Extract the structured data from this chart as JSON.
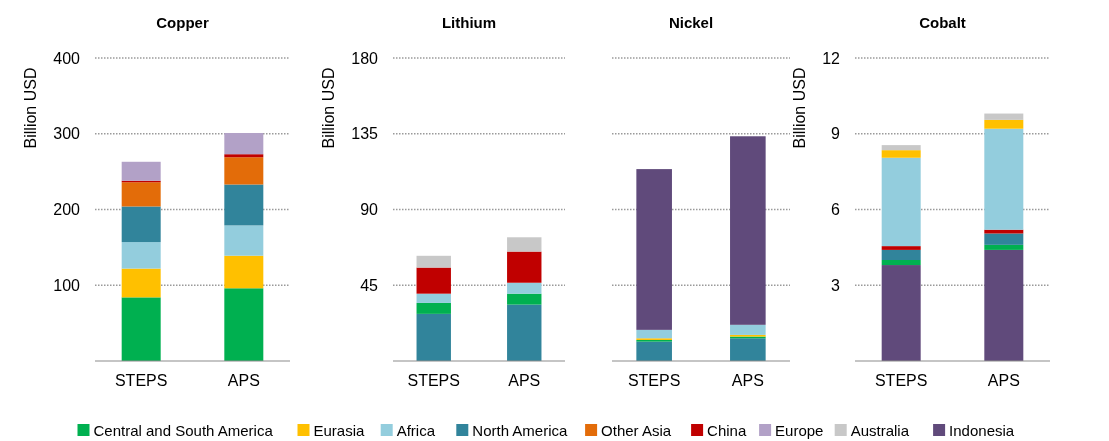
{
  "chart_data": [
    {
      "type": "bar",
      "title": "Copper",
      "ylabel": "Billion USD",
      "stacked": true,
      "categories": [
        "STEPS",
        "APS"
      ],
      "ylim": [
        0,
        400
      ],
      "yticks": [
        100,
        200,
        300,
        400
      ],
      "grid": "y",
      "legend": "bottom",
      "series": [
        {
          "name": "Central and South America",
          "color": "#00b050",
          "values": [
            84,
            96
          ]
        },
        {
          "name": "Eurasia",
          "color": "#ffc000",
          "values": [
            38,
            43
          ]
        },
        {
          "name": "Africa",
          "color": "#93cddd",
          "values": [
            35,
            40
          ]
        },
        {
          "name": "North America",
          "color": "#31849b",
          "values": [
            47,
            54
          ]
        },
        {
          "name": "Other Asia",
          "color": "#e36c09",
          "values": [
            32,
            36
          ]
        },
        {
          "name": "China",
          "color": "#c00000",
          "values": [
            2,
            4
          ]
        },
        {
          "name": "Europe",
          "color": "#b2a1c7",
          "values": [
            25,
            28
          ]
        }
      ]
    },
    {
      "type": "bar",
      "title": "Lithium",
      "ylabel": "Billion USD",
      "stacked": true,
      "categories": [
        "STEPS",
        "APS"
      ],
      "ylim": [
        0,
        180
      ],
      "yticks": [
        45,
        90,
        135,
        180
      ],
      "grid": "y",
      "legend": "bottom",
      "series": [
        {
          "name": "North America",
          "color": "#31849b",
          "values": [
            28,
            33.5
          ]
        },
        {
          "name": "Central and South America",
          "color": "#00b050",
          "values": [
            6.5,
            6.5
          ]
        },
        {
          "name": "Africa",
          "color": "#93cddd",
          "values": [
            5.5,
            6.5
          ]
        },
        {
          "name": "China",
          "color": "#c00000",
          "values": [
            15.5,
            18.5
          ]
        },
        {
          "name": "Australia",
          "color": "#c8c8c8",
          "values": [
            7,
            8.5
          ]
        }
      ]
    },
    {
      "type": "bar",
      "title": "Nickel",
      "stacked": true,
      "categories": [
        "STEPS",
        "APS"
      ],
      "ylim": [
        0,
        180
      ],
      "yticks": [
        45,
        90,
        135,
        180
      ],
      "tick_labels": "x",
      "grid": "y",
      "legend": "bottom",
      "series": [
        {
          "name": "North America",
          "color": "#31849b",
          "values": [
            11.5,
            13.5
          ]
        },
        {
          "name": "Central and South America",
          "color": "#00b050",
          "values": [
            1,
            1
          ]
        },
        {
          "name": "Eurasia",
          "color": "#ffc000",
          "values": [
            1,
            1
          ]
        },
        {
          "name": "Africa",
          "color": "#93cddd",
          "values": [
            5,
            6
          ]
        },
        {
          "name": "Indonesia",
          "color": "#604a7b",
          "values": [
            95.5,
            112
          ]
        }
      ]
    },
    {
      "type": "bar",
      "title": "Cobalt",
      "ylabel": "Billion USD",
      "stacked": true,
      "categories": [
        "STEPS",
        "APS"
      ],
      "ylim": [
        0,
        12
      ],
      "yticks": [
        3,
        6,
        9,
        12
      ],
      "grid": "y",
      "legend": "bottom",
      "series": [
        {
          "name": "Indonesia",
          "color": "#604a7b",
          "values": [
            3.8,
            4.4
          ]
        },
        {
          "name": "Central and South America",
          "color": "#00b050",
          "values": [
            0.2,
            0.2
          ]
        },
        {
          "name": "North America",
          "color": "#31849b",
          "values": [
            0.4,
            0.45
          ]
        },
        {
          "name": "China",
          "color": "#c00000",
          "values": [
            0.15,
            0.15
          ]
        },
        {
          "name": "Africa",
          "color": "#93cddd",
          "values": [
            3.5,
            4.0
          ]
        },
        {
          "name": "Eurasia",
          "color": "#ffc000",
          "values": [
            0.3,
            0.35
          ]
        },
        {
          "name": "Australia",
          "color": "#c8c8c8",
          "values": [
            0.2,
            0.25
          ]
        }
      ]
    }
  ]
}
